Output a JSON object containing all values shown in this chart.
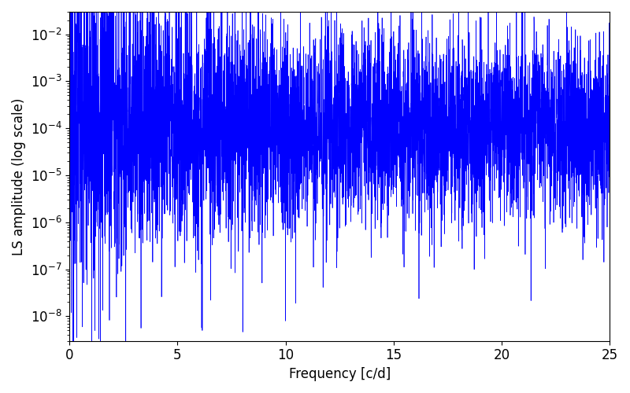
{
  "title": "",
  "xlabel": "Frequency [c/d]",
  "ylabel": "LS amplitude (log scale)",
  "xlim": [
    0,
    25
  ],
  "ylim": [
    3e-09,
    0.03
  ],
  "yscale": "log",
  "line_color": "#0000ff",
  "line_width": 0.5,
  "figsize": [
    8.0,
    5.0
  ],
  "dpi": 100,
  "freq_min": 0.005,
  "freq_max": 25.0,
  "n_points": 5000,
  "seed": 12345,
  "background_color": "#ffffff",
  "tick_labelsize": 12,
  "axis_labelsize": 12
}
